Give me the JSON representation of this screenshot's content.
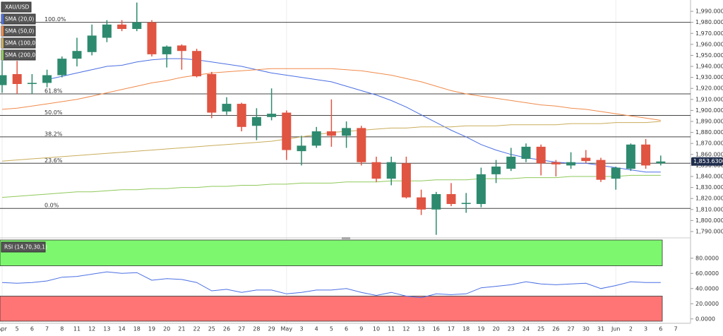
{
  "chart_data": [
    {
      "type": "candlestick",
      "title": "XAU/USD",
      "categories": [
        "Apr",
        "5",
        "6",
        "7",
        "8",
        "11",
        "12",
        "13",
        "14",
        "18",
        "19",
        "20",
        "21",
        "22",
        "25",
        "26",
        "27",
        "28",
        "29",
        "May",
        "3",
        "4",
        "5",
        "6",
        "9",
        "10",
        "11",
        "12",
        "13",
        "16",
        "17",
        "18",
        "19",
        "20",
        "23",
        "24",
        "25",
        "26",
        "27",
        "30",
        "31",
        "Jun",
        "2",
        "3",
        "6",
        "7"
      ],
      "open": [
        1923,
        1933,
        1924,
        1925,
        1932,
        1947,
        1953,
        1966,
        1978,
        1974,
        1980,
        1951,
        1959,
        1954,
        1933,
        1899,
        1906,
        1886,
        1894,
        1898,
        1863,
        1868,
        1881,
        1877,
        1884,
        1853,
        1838,
        1852,
        1821,
        1810,
        1824,
        1815,
        1815,
        1842,
        1847,
        1856,
        1867,
        1853,
        1850,
        1857,
        1855,
        1838,
        1847,
        1869,
        1852,
        null
      ],
      "high": [
        1945,
        1945,
        1933,
        1937,
        1949,
        1966,
        1978,
        1982,
        1982,
        1998,
        1982,
        1959,
        1960,
        1956,
        1935,
        1912,
        1907,
        1902,
        1920,
        1900,
        1877,
        1885,
        1910,
        1890,
        1886,
        1858,
        1858,
        1858,
        1828,
        1826,
        1834,
        1825,
        1848,
        1855,
        1866,
        1870,
        1869,
        1855,
        1862,
        1864,
        1857,
        1849,
        1870,
        1874,
        1859,
        null
      ],
      "low": [
        1916,
        1915,
        1915,
        1921,
        1930,
        1940,
        1950,
        1962,
        1972,
        1972,
        1949,
        1939,
        1937,
        1930,
        1893,
        1896,
        1881,
        1873,
        1891,
        1855,
        1850,
        1866,
        1867,
        1866,
        1850,
        1835,
        1832,
        1820,
        1805,
        1787,
        1813,
        1807,
        1812,
        1834,
        1845,
        1853,
        1841,
        1840,
        1847,
        1852,
        1835,
        1828,
        1845,
        1847,
        1850,
        null
      ],
      "close": [
        1932,
        1924,
        1925,
        1932,
        1947,
        1954,
        1968,
        1978,
        1974,
        1980,
        1951,
        1958,
        1954,
        1931,
        1898,
        1906,
        1885,
        1894,
        1897,
        1864,
        1868,
        1881,
        1877,
        1884,
        1853,
        1838,
        1853,
        1821,
        1810,
        1824,
        1815,
        1816,
        1842,
        1849,
        1858,
        1867,
        1852,
        1851,
        1853,
        1854,
        1837,
        1848,
        1869,
        1850,
        1853.63,
        null
      ],
      "up_color": "#2e8a6e",
      "down_color": "#e05442",
      "ylim": [
        1785.5,
        2000.3
      ],
      "yticks": [
        {
          "value": 1790,
          "label": "1,790.0000"
        },
        {
          "value": 1800,
          "label": "1,800.0000"
        },
        {
          "value": 1810,
          "label": "1,810.0000"
        },
        {
          "value": 1820,
          "label": "1,820.0000"
        },
        {
          "value": 1830,
          "label": "1,830.0000"
        },
        {
          "value": 1840,
          "label": "1,840.0000"
        },
        {
          "value": 1850,
          "label": "1,850.0000"
        },
        {
          "value": 1860,
          "label": "1,860.0000"
        },
        {
          "value": 1870,
          "label": "1,870.0000"
        },
        {
          "value": 1880,
          "label": "1,880.0000"
        },
        {
          "value": 1890,
          "label": "1,890.0000"
        },
        {
          "value": 1900,
          "label": "1,900.0000"
        },
        {
          "value": 1910,
          "label": "1,910.0000"
        },
        {
          "value": 1920,
          "label": "1,920.0000"
        },
        {
          "value": 1930,
          "label": "1,930.0000"
        },
        {
          "value": 1940,
          "label": "1,940.0000"
        },
        {
          "value": 1950,
          "label": "1,950.0000"
        },
        {
          "value": 1960,
          "label": "1,960.0000"
        },
        {
          "value": 1970,
          "label": "1,970.0000"
        },
        {
          "value": 1980,
          "label": "1,980.0000"
        },
        {
          "value": 1990,
          "label": "1,990.0000"
        }
      ],
      "last_price": {
        "value": 1853.63,
        "label": "1,853.6300"
      },
      "fib_levels": [
        {
          "label": "100.0%",
          "price": 1980
        },
        {
          "label": "61.8%",
          "price": 1915
        },
        {
          "label": "50.0%",
          "price": 1895.5
        },
        {
          "label": "38.2%",
          "price": 1876
        },
        {
          "label": "23.6%",
          "price": 1852
        },
        {
          "label": "0.0%",
          "price": 1811
        }
      ],
      "series": [
        {
          "name": "SMA (20,0)",
          "color": "#4a6fe3",
          "values": [
            null,
            null,
            null,
            1928,
            1931,
            1934,
            1937,
            1940,
            1941,
            1944,
            1946,
            1947,
            1947,
            1946,
            1944,
            1942,
            1940,
            1937,
            1934,
            1932,
            1930,
            1928,
            1926,
            1922,
            1918,
            1914,
            1909,
            1903,
            1896,
            1889,
            1882,
            1876,
            1869,
            1864,
            1860,
            1857,
            1855,
            1853,
            1852,
            1852,
            1850,
            1848,
            1846,
            1844,
            1844,
            null
          ]
        },
        {
          "name": "SMA (50,0)",
          "color": "#f08a4b",
          "values": [
            1901,
            1902,
            1904,
            1906,
            1908,
            1910,
            1913,
            1916,
            1919,
            1922,
            1925,
            1927,
            1930,
            1932,
            1934,
            1935,
            1936,
            1937,
            1938,
            1938,
            1938,
            1938,
            1938,
            1937,
            1936,
            1934,
            1932,
            1929,
            1926,
            1922,
            1918,
            1915,
            1913,
            1911,
            1909,
            1907,
            1905,
            1904,
            1902,
            1901,
            1899,
            1897,
            1895,
            1893,
            1891,
            null
          ]
        },
        {
          "name": "SMA (100,0)",
          "color": "#c9ad5c",
          "values": [
            1854,
            1855,
            1856,
            1857,
            1858,
            1859,
            1860,
            1861,
            1862,
            1863,
            1864,
            1865,
            1866,
            1867,
            1868,
            1869,
            1870,
            1871,
            1872,
            1874,
            1876,
            1878,
            1880,
            1881,
            1882,
            1883,
            1884,
            1884,
            1885,
            1885,
            1885,
            1886,
            1886,
            1886,
            1887,
            1887,
            1887,
            1887,
            1888,
            1888,
            1888,
            1889,
            1889,
            1889,
            1890,
            null
          ]
        },
        {
          "name": "SMA (200,0)",
          "color": "#8fc95a",
          "values": [
            1821,
            1822,
            1823,
            1824,
            1825,
            1826,
            1826,
            1827,
            1828,
            1828,
            1829,
            1829,
            1830,
            1830,
            1831,
            1831,
            1832,
            1832,
            1833,
            1833,
            1834,
            1834,
            1834,
            1835,
            1835,
            1835,
            1836,
            1836,
            1836,
            1837,
            1837,
            1837,
            1838,
            1838,
            1838,
            1839,
            1839,
            1839,
            1840,
            1840,
            1840,
            1840,
            1841,
            1841,
            1841,
            null
          ]
        }
      ]
    },
    {
      "type": "line",
      "title": "RSI (14,70,30,1)",
      "series": [
        {
          "color": "#4a6fe3",
          "values": [
            48,
            47,
            48,
            50,
            55,
            56,
            59,
            62,
            60,
            61,
            51,
            53,
            52,
            48,
            37,
            39,
            35,
            38,
            38,
            33,
            35,
            38,
            38,
            40,
            35,
            31,
            35,
            30,
            28,
            33,
            32,
            33,
            41,
            43,
            45,
            49,
            46,
            45,
            46,
            47,
            40,
            44,
            49,
            48,
            48,
            null
          ]
        }
      ],
      "ylim": [
        -3,
        104
      ],
      "yticks": [
        {
          "value": 0,
          "label": "0.0000"
        },
        {
          "value": 20,
          "label": "20.0000"
        },
        {
          "value": 40,
          "label": "40.0000"
        },
        {
          "value": 60,
          "label": "60.0000"
        },
        {
          "value": 80,
          "label": "80.0000"
        }
      ],
      "overbought": 70,
      "oversold": 30,
      "overbought_color": "#7df76e",
      "oversold_color": "#ff7575"
    }
  ]
}
